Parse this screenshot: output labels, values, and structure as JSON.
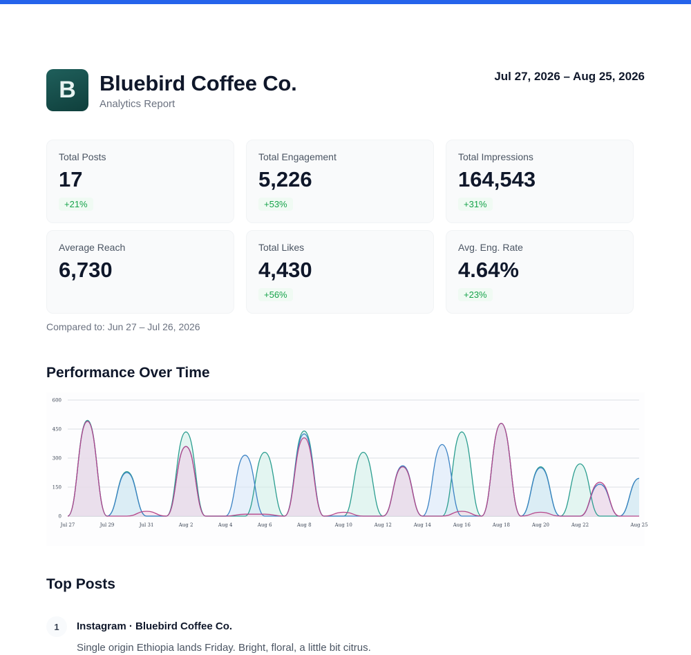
{
  "brand": {
    "initial": "B",
    "name": "Bluebird Coffee Co.",
    "subtitle": "Analytics Report"
  },
  "date_range": "Jul 27, 2026 – Aug 25, 2026",
  "colors": {
    "accent": "#2563eb",
    "positive": "#16a34a",
    "logo": "#1a524f"
  },
  "metrics": [
    {
      "label": "Total Posts",
      "value": "17",
      "delta": "+21%"
    },
    {
      "label": "Total Engagement",
      "value": "5,226",
      "delta": "+53%"
    },
    {
      "label": "Total Impressions",
      "value": "164,543",
      "delta": "+31%"
    },
    {
      "label": "Average Reach",
      "value": "6,730",
      "delta": ""
    },
    {
      "label": "Total Likes",
      "value": "4,430",
      "delta": "+56%"
    },
    {
      "label": "Avg. Eng. Rate",
      "value": "4.64%",
      "delta": "+23%"
    }
  ],
  "compared_to": "Compared to: Jun 27 – Jul 26, 2026",
  "performance_title": "Performance Over Time",
  "top_posts_title": "Top Posts",
  "top_posts": [
    {
      "rank": "1",
      "title": "Instagram · Bluebird Coffee Co.",
      "text": "Single origin Ethiopia lands Friday. Bright, floral, a little bit citrus."
    }
  ],
  "chart_data": {
    "type": "area",
    "x": [
      "Jul 27",
      "Jul 28",
      "Jul 29",
      "Jul 30",
      "Jul 31",
      "Aug 1",
      "Aug 2",
      "Aug 3",
      "Aug 4",
      "Aug 5",
      "Aug 6",
      "Aug 7",
      "Aug 8",
      "Aug 9",
      "Aug 10",
      "Aug 11",
      "Aug 12",
      "Aug 13",
      "Aug 14",
      "Aug 15",
      "Aug 16",
      "Aug 17",
      "Aug 18",
      "Aug 19",
      "Aug 20",
      "Aug 21",
      "Aug 22",
      "Aug 23",
      "Aug 24",
      "Aug 25"
    ],
    "x_tick_labels": [
      "Jul 27",
      "Jul 29",
      "Jul 31",
      "Aug 2",
      "Aug 4",
      "Aug 6",
      "Aug 8",
      "Aug 10",
      "Aug 12",
      "Aug 14",
      "Aug 16",
      "Aug 18",
      "Aug 20",
      "Aug 22",
      "Aug 25"
    ],
    "ylim": [
      0,
      600
    ],
    "y_ticks": [
      0,
      150,
      300,
      450,
      600
    ],
    "grid": true,
    "series": [
      {
        "color": "#2a9d8f",
        "fill": "#cdeee6",
        "values": [
          0,
          495,
          0,
          230,
          0,
          0,
          435,
          0,
          0,
          0,
          330,
          0,
          440,
          0,
          0,
          330,
          0,
          255,
          0,
          0,
          435,
          0,
          480,
          0,
          255,
          0,
          270,
          0,
          0,
          195
        ]
      },
      {
        "color": "#3b82c4",
        "fill": "#d6e6f8",
        "values": [
          0,
          490,
          0,
          225,
          0,
          0,
          360,
          0,
          0,
          315,
          0,
          0,
          425,
          0,
          0,
          0,
          0,
          260,
          0,
          370,
          0,
          0,
          480,
          0,
          250,
          0,
          0,
          165,
          0,
          195
        ]
      },
      {
        "color": "#b5478a",
        "fill": "#f5d3e3",
        "values": [
          0,
          490,
          0,
          0,
          25,
          0,
          360,
          0,
          0,
          10,
          10,
          0,
          405,
          0,
          20,
          0,
          0,
          255,
          0,
          0,
          25,
          0,
          480,
          0,
          20,
          0,
          0,
          175,
          0,
          0
        ]
      }
    ]
  }
}
